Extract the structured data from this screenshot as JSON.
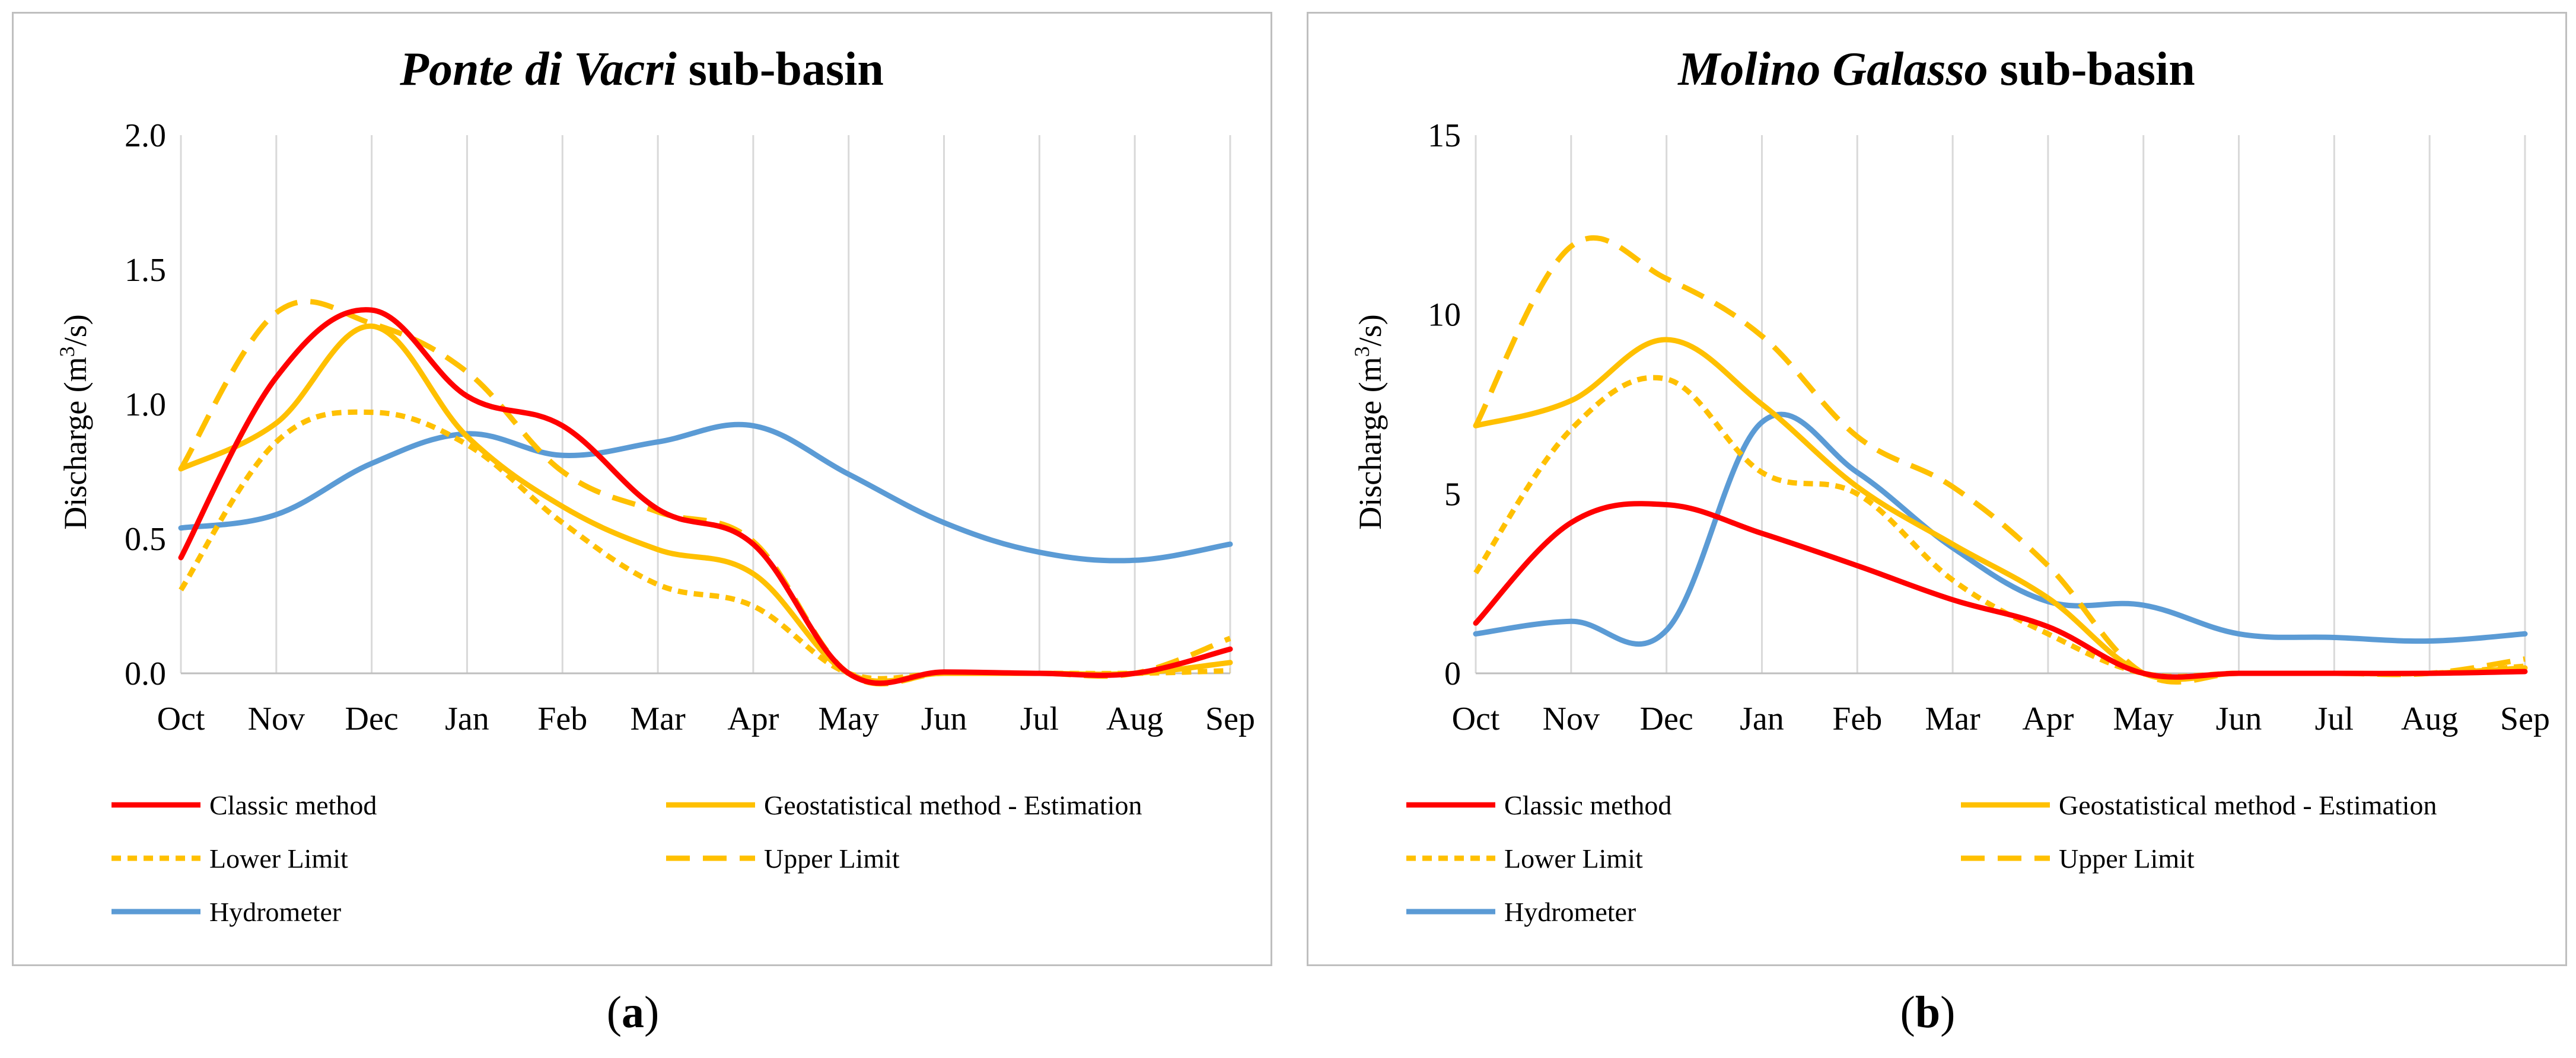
{
  "figure": {
    "subcaption_a_open": "(",
    "subcaption_a_letter": "a",
    "subcaption_a_close": ")",
    "subcaption_b_open": "(",
    "subcaption_b_letter": "b",
    "subcaption_b_close": ")"
  },
  "chart_data": [
    {
      "type": "line",
      "title_italic": "Ponte di Vacri",
      "title_rest": " sub-basin",
      "xlabel": "",
      "ylabel_prefix": "Discharge (m",
      "ylabel_sup": "3",
      "ylabel_suffix": "/s)",
      "categories": [
        "Oct",
        "Nov",
        "Dec",
        "Jan",
        "Feb",
        "Mar",
        "Apr",
        "May",
        "Jun",
        "Jul",
        "Aug",
        "Sep"
      ],
      "ylim": [
        0,
        2
      ],
      "yticks": [
        0,
        0.5,
        1,
        1.5,
        2
      ],
      "ytick_labels": [
        "0.0",
        "0.5",
        "1.0",
        "1.5",
        "2.0"
      ],
      "grid": "vertical",
      "legend_position": "bottom",
      "series": [
        {
          "name": "Classic method",
          "color": "#ff0000",
          "style": "solid",
          "values": [
            0.43,
            1.1,
            1.35,
            1.03,
            0.92,
            0.61,
            0.48,
            0.0,
            0.005,
            0.0,
            0.0,
            0.09
          ]
        },
        {
          "name": "Geostatistical method - Estimation",
          "color": "#ffc000",
          "style": "solid",
          "values": [
            0.76,
            0.93,
            1.29,
            0.88,
            0.62,
            0.46,
            0.37,
            0.0,
            0.0,
            0.0,
            0.0,
            0.04
          ]
        },
        {
          "name": "Lower Limit",
          "color": "#ffc000",
          "style": "short-dash",
          "values": [
            0.31,
            0.86,
            0.97,
            0.85,
            0.56,
            0.33,
            0.25,
            0.0,
            0.0,
            0.0,
            0.0,
            0.01
          ]
        },
        {
          "name": "Upper Limit",
          "color": "#ffc000",
          "style": "long-dash",
          "values": [
            0.76,
            1.34,
            1.3,
            1.12,
            0.75,
            0.6,
            0.49,
            0.0,
            0.0,
            0.0,
            0.0,
            0.13
          ]
        },
        {
          "name": "Hydrometer",
          "color": "#5b9bd5",
          "style": "solid",
          "values": [
            0.54,
            0.59,
            0.78,
            0.89,
            0.81,
            0.86,
            0.92,
            0.74,
            0.56,
            0.45,
            0.42,
            0.48
          ]
        }
      ]
    },
    {
      "type": "line",
      "title_italic": "Molino Galasso",
      "title_rest": " sub-basin",
      "xlabel": "",
      "ylabel_prefix": "Discharge (m",
      "ylabel_sup": "3",
      "ylabel_suffix": "/s)",
      "categories": [
        "Oct",
        "Nov",
        "Dec",
        "Jan",
        "Feb",
        "Mar",
        "Apr",
        "May",
        "Jun",
        "Jul",
        "Aug",
        "Sep"
      ],
      "ylim": [
        0,
        15
      ],
      "yticks": [
        0,
        5,
        10,
        15
      ],
      "ytick_labels": [
        "0",
        "5",
        "10",
        "15"
      ],
      "grid": "vertical",
      "legend_position": "bottom",
      "series": [
        {
          "name": "Classic method",
          "color": "#ff0000",
          "style": "solid",
          "values": [
            1.4,
            4.2,
            4.7,
            3.9,
            3.0,
            2.05,
            1.3,
            0.0,
            0.0,
            0.0,
            0.0,
            0.05
          ]
        },
        {
          "name": "Geostatistical method - Estimation",
          "color": "#ffc000",
          "style": "solid",
          "values": [
            6.9,
            7.6,
            9.3,
            7.5,
            5.2,
            3.6,
            2.1,
            0.0,
            0.0,
            0.0,
            0.0,
            0.15
          ]
        },
        {
          "name": "Lower Limit",
          "color": "#ffc000",
          "style": "short-dash",
          "values": [
            2.8,
            6.8,
            8.2,
            5.6,
            5.0,
            2.6,
            1.1,
            0.0,
            0.0,
            0.0,
            0.0,
            0.2
          ]
        },
        {
          "name": "Upper Limit",
          "color": "#ffc000",
          "style": "long-dash",
          "values": [
            6.9,
            11.9,
            11.0,
            9.4,
            6.6,
            5.2,
            3.0,
            0.0,
            0.0,
            0.0,
            0.0,
            0.4
          ]
        },
        {
          "name": "Hydrometer",
          "color": "#5b9bd5",
          "style": "solid",
          "values": [
            1.1,
            1.45,
            1.2,
            7.0,
            5.6,
            3.5,
            2.0,
            1.9,
            1.1,
            1.0,
            0.9,
            1.1
          ]
        }
      ]
    }
  ]
}
